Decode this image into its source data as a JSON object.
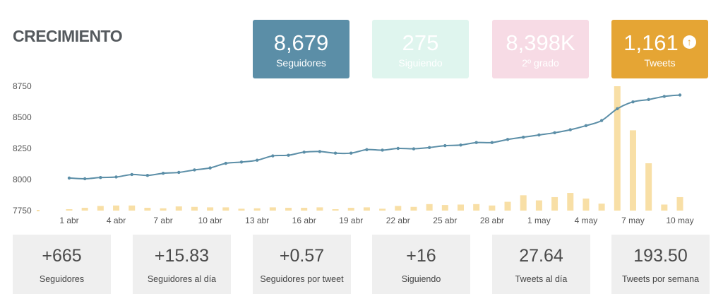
{
  "header": {
    "title": "CRECIMIENTO"
  },
  "cards": [
    {
      "value": "8,679",
      "label": "Seguidores",
      "bg": "#5b8ea7",
      "fg": "#ffffff"
    },
    {
      "value": "275",
      "label": "Siguiendo",
      "bg": "#dff5ee",
      "fg": "#ffffff"
    },
    {
      "value": "8,398K",
      "label": "2º grado",
      "bg": "#f7dbe5",
      "fg": "#ffffff"
    },
    {
      "value": "1,161",
      "label": "Tweets",
      "bg": "#e5a534",
      "fg": "#ffffff",
      "icon": "arrow-up-circle-icon"
    }
  ],
  "stats": [
    {
      "value": "+665",
      "label": "Seguidores"
    },
    {
      "value": "+15.83",
      "label": "Seguidores al día"
    },
    {
      "value": "+0.57",
      "label": "Seguidores por tweet"
    },
    {
      "value": "+16",
      "label": "Siguiendo"
    },
    {
      "value": "27.64",
      "label": "Tweets al día"
    },
    {
      "value": "193.50",
      "label": "Tweets por semana"
    }
  ],
  "chart_data": {
    "type": "line",
    "y_ticks": [
      "8750",
      "8500",
      "8250",
      "8000",
      "7750"
    ],
    "x_ticks": [
      "1 abr",
      "4 abr",
      "7 abr",
      "10 abr",
      "13 abr",
      "16 abr",
      "19 abr",
      "22 abr",
      "25 abr",
      "28 abr",
      "1 may",
      "4 may",
      "7 may",
      "10 may"
    ],
    "ylim": [
      7750,
      8750
    ],
    "line_color": "#5b8ea7",
    "bar_color": "#f8dfa6",
    "series": [
      {
        "type": "line",
        "values": [
          8012,
          8006,
          8016,
          8020,
          8040,
          8033,
          8050,
          8057,
          8077,
          8093,
          8130,
          8140,
          8155,
          8190,
          8195,
          8220,
          8225,
          8212,
          8212,
          8240,
          8236,
          8250,
          8247,
          8257,
          8272,
          8277,
          8297,
          8297,
          8322,
          8340,
          8358,
          8376,
          8400,
          8433,
          8474,
          8569,
          8624,
          8643,
          8668,
          8679
        ]
      },
      {
        "type": "bar",
        "values": [
          3,
          6,
          10,
          11,
          11,
          6,
          5,
          9,
          8,
          7,
          7,
          4,
          5,
          7,
          6,
          6,
          7,
          3,
          6,
          7,
          4,
          10,
          8,
          14,
          12,
          13,
          14,
          11,
          19,
          33,
          22,
          29,
          38,
          26,
          15,
          268,
          173,
          102,
          13,
          29
        ]
      }
    ]
  }
}
